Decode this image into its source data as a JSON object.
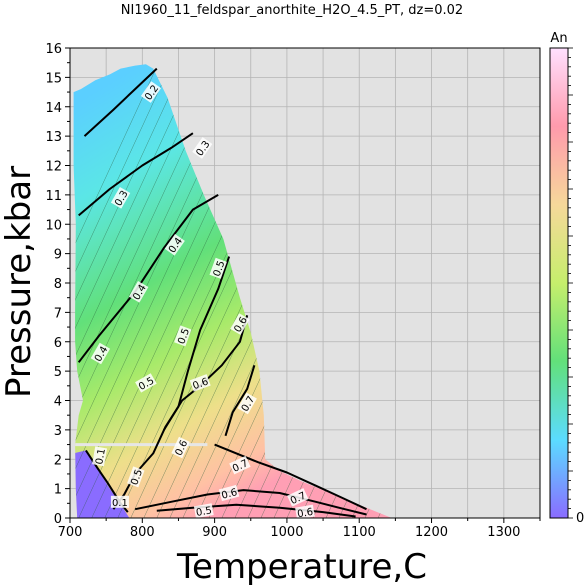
{
  "chart_data": {
    "type": "contour",
    "title": "NI1960_11_feldspar_anorthite_H2O_4.5_PT, dz=0.02",
    "xlabel": "Temperature,C",
    "ylabel": "Pressure,kbar",
    "xlim": [
      700,
      1350
    ],
    "ylim": [
      0,
      16
    ],
    "xticks": [
      "700",
      "800",
      "900",
      "1000",
      "1100",
      "1200",
      "1300"
    ],
    "yticks": [
      "0",
      "1",
      "2",
      "3",
      "4",
      "5",
      "6",
      "7",
      "8",
      "9",
      "10",
      "11",
      "12",
      "13",
      "14",
      "15",
      "16"
    ],
    "grid": true,
    "background_color": "#e2e2e2",
    "colorbar": {
      "label": "An",
      "min_label": "0",
      "min": 0,
      "max": 1,
      "colors": [
        "#8a6cff",
        "#5bdcff",
        "#62e07a",
        "#c6ee6c",
        "#f6d89a",
        "#ff9aac",
        "#ffe0ff"
      ]
    },
    "domain_boundary": [
      [
        705,
        14.5
      ],
      [
        715,
        14.6
      ],
      [
        735,
        14.9
      ],
      [
        755,
        15.1
      ],
      [
        770,
        15.3
      ],
      [
        790,
        15.4
      ],
      [
        805,
        15.45
      ],
      [
        815,
        15.3
      ],
      [
        835,
        14.3
      ],
      [
        860,
        12.5
      ],
      [
        885,
        11.0
      ],
      [
        912,
        9.5
      ],
      [
        935,
        7.5
      ],
      [
        950,
        6.3
      ],
      [
        962,
        5.0
      ],
      [
        968,
        3.5
      ],
      [
        970,
        2.0
      ],
      [
        990,
        1.6
      ],
      [
        1020,
        1.25
      ],
      [
        1060,
        0.85
      ],
      [
        1100,
        0.45
      ],
      [
        1130,
        0.15
      ],
      [
        1145,
        0.0
      ],
      [
        710,
        0.0
      ],
      [
        708,
        1.0
      ],
      [
        707,
        2.5
      ],
      [
        712,
        3.5
      ],
      [
        718,
        4.0
      ],
      [
        710,
        5.0
      ],
      [
        707,
        6.0
      ],
      [
        707,
        7.0
      ],
      [
        708,
        10.0
      ],
      [
        705,
        12.0
      ],
      [
        705,
        14.5
      ]
    ],
    "contours": [
      {
        "label": "0.2",
        "points": [
          [
            720,
            13.0
          ],
          [
            760,
            13.9
          ],
          [
            790,
            14.6
          ],
          [
            820,
            15.3
          ]
        ]
      },
      {
        "label": "0.3",
        "points": [
          [
            712,
            10.3
          ],
          [
            755,
            11.2
          ],
          [
            800,
            12.0
          ],
          [
            840,
            12.6
          ],
          [
            870,
            13.1
          ]
        ]
      },
      {
        "label": "0.4",
        "points": [
          [
            712,
            5.3
          ],
          [
            740,
            6.2
          ],
          [
            790,
            7.7
          ],
          [
            830,
            9.2
          ],
          [
            870,
            10.5
          ],
          [
            905,
            11.0
          ]
        ]
      },
      {
        "label": "0.5",
        "points": [
          [
            760,
            0.3
          ],
          [
            775,
            0.8
          ],
          [
            790,
            1.5
          ],
          [
            815,
            2.2
          ],
          [
            832,
            3.1
          ],
          [
            850,
            3.8
          ],
          [
            863,
            5.0
          ],
          [
            880,
            6.4
          ],
          [
            905,
            7.8
          ],
          [
            920,
            8.9
          ]
        ]
      },
      {
        "label": "0.6",
        "points": [
          [
            830,
            3.0
          ],
          [
            855,
            4.0
          ],
          [
            880,
            4.5
          ],
          [
            910,
            5.2
          ],
          [
            935,
            6.0
          ],
          [
            945,
            6.9
          ]
        ]
      },
      {
        "label": "0.6",
        "points": [
          [
            790,
            0.3
          ],
          [
            840,
            0.55
          ],
          [
            890,
            0.8
          ],
          [
            940,
            0.95
          ],
          [
            990,
            0.85
          ],
          [
            1040,
            0.55
          ],
          [
            1080,
            0.3
          ],
          [
            1110,
            0.12
          ]
        ]
      },
      {
        "label": "0.7",
        "points": [
          [
            915,
            2.8
          ],
          [
            925,
            3.6
          ],
          [
            945,
            4.4
          ],
          [
            955,
            5.2
          ]
        ]
      },
      {
        "label": "0.7",
        "points": [
          [
            900,
            2.5
          ],
          [
            960,
            1.9
          ],
          [
            1000,
            1.55
          ],
          [
            1040,
            1.1
          ],
          [
            1075,
            0.7
          ],
          [
            1110,
            0.3
          ]
        ]
      },
      {
        "label": "0.1",
        "points": [
          [
            722,
            2.3
          ],
          [
            738,
            1.7
          ],
          [
            752,
            1.2
          ],
          [
            770,
            0.5
          ],
          [
            780,
            0.2
          ]
        ]
      },
      {
        "label": "0.5",
        "points": [
          [
            820,
            0.25
          ],
          [
            870,
            0.35
          ],
          [
            930,
            0.45
          ],
          [
            990,
            0.35
          ],
          [
            1050,
            0.2
          ],
          [
            1095,
            0.05
          ]
        ]
      }
    ],
    "contour_labels": [
      {
        "text": "0.2",
        "x": 812,
        "y": 14.5,
        "angle": -55
      },
      {
        "text": "0.3",
        "x": 883,
        "y": 12.6,
        "angle": -55
      },
      {
        "text": "0.3",
        "x": 770,
        "y": 10.9,
        "angle": -60
      },
      {
        "text": "0.4",
        "x": 845,
        "y": 9.3,
        "angle": -55
      },
      {
        "text": "0.4",
        "x": 795,
        "y": 7.7,
        "angle": -60
      },
      {
        "text": "0.4",
        "x": 742,
        "y": 5.6,
        "angle": -60
      },
      {
        "text": "0.5",
        "x": 905,
        "y": 8.5,
        "angle": -70
      },
      {
        "text": "0.5",
        "x": 856,
        "y": 6.2,
        "angle": -70
      },
      {
        "text": "0.5",
        "x": 805,
        "y": 4.6,
        "angle": -30
      },
      {
        "text": "0.6",
        "x": 935,
        "y": 6.6,
        "angle": -60
      },
      {
        "text": "0.6",
        "x": 880,
        "y": 4.6,
        "angle": -20
      },
      {
        "text": "0.6",
        "x": 853,
        "y": 2.4,
        "angle": -65
      },
      {
        "text": "0.7",
        "x": 945,
        "y": 3.9,
        "angle": -60
      },
      {
        "text": "0.7",
        "x": 935,
        "y": 1.8,
        "angle": -25
      },
      {
        "text": "0.5",
        "x": 791,
        "y": 1.4,
        "angle": -70
      },
      {
        "text": "0.6",
        "x": 920,
        "y": 0.85,
        "angle": -15
      },
      {
        "text": "0.7",
        "x": 1015,
        "y": 0.7,
        "angle": -25
      },
      {
        "text": "0.6",
        "x": 1025,
        "y": 0.2,
        "angle": -10
      },
      {
        "text": "0.5",
        "x": 885,
        "y": 0.25,
        "angle": -10
      },
      {
        "text": "0.1",
        "x": 741,
        "y": 2.1,
        "angle": -80
      },
      {
        "text": "0.1",
        "x": 769,
        "y": 0.55,
        "angle": 0
      }
    ]
  }
}
